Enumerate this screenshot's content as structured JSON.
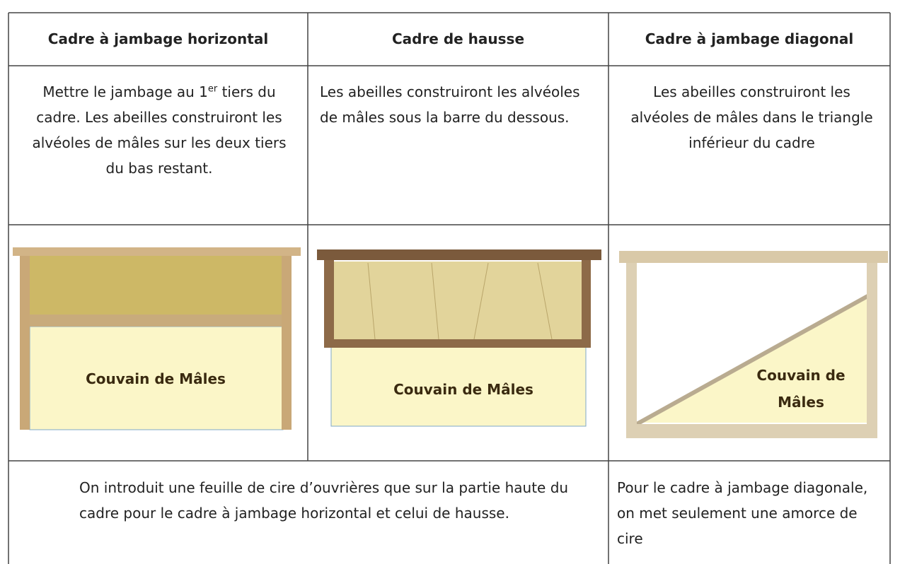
{
  "table": {
    "headers": [
      "Cadre à jambage horizontal",
      "Cadre de hausse",
      "Cadre à jambage diagonal"
    ],
    "description_1": {
      "before": "Mettre le jambage au 1",
      "superscript": "er",
      "after": " tiers du cadre. Les abeilles construiront les alvéoles de mâles sur les deux tiers du bas restant."
    },
    "description_2": "Les abeilles construiront les alvéoles de mâles sous la barre du dessous.",
    "description_3": "Les abeilles construiront les alvéoles de mâles dans le triangle inférieur du cadre",
    "frame_labels": [
      "Couvain de Mâles",
      "Couvain de Mâles",
      [
        "Couvain de",
        "Mâles"
      ]
    ],
    "notes": [
      "On introduit une feuille de cire d’ouvrières que sur la partie haute du cadre pour le cadre à jambage horizontal et celui de hausse.",
      "Pour le cadre à jambage diagonale, on met seulement une amorce de cire"
    ]
  }
}
